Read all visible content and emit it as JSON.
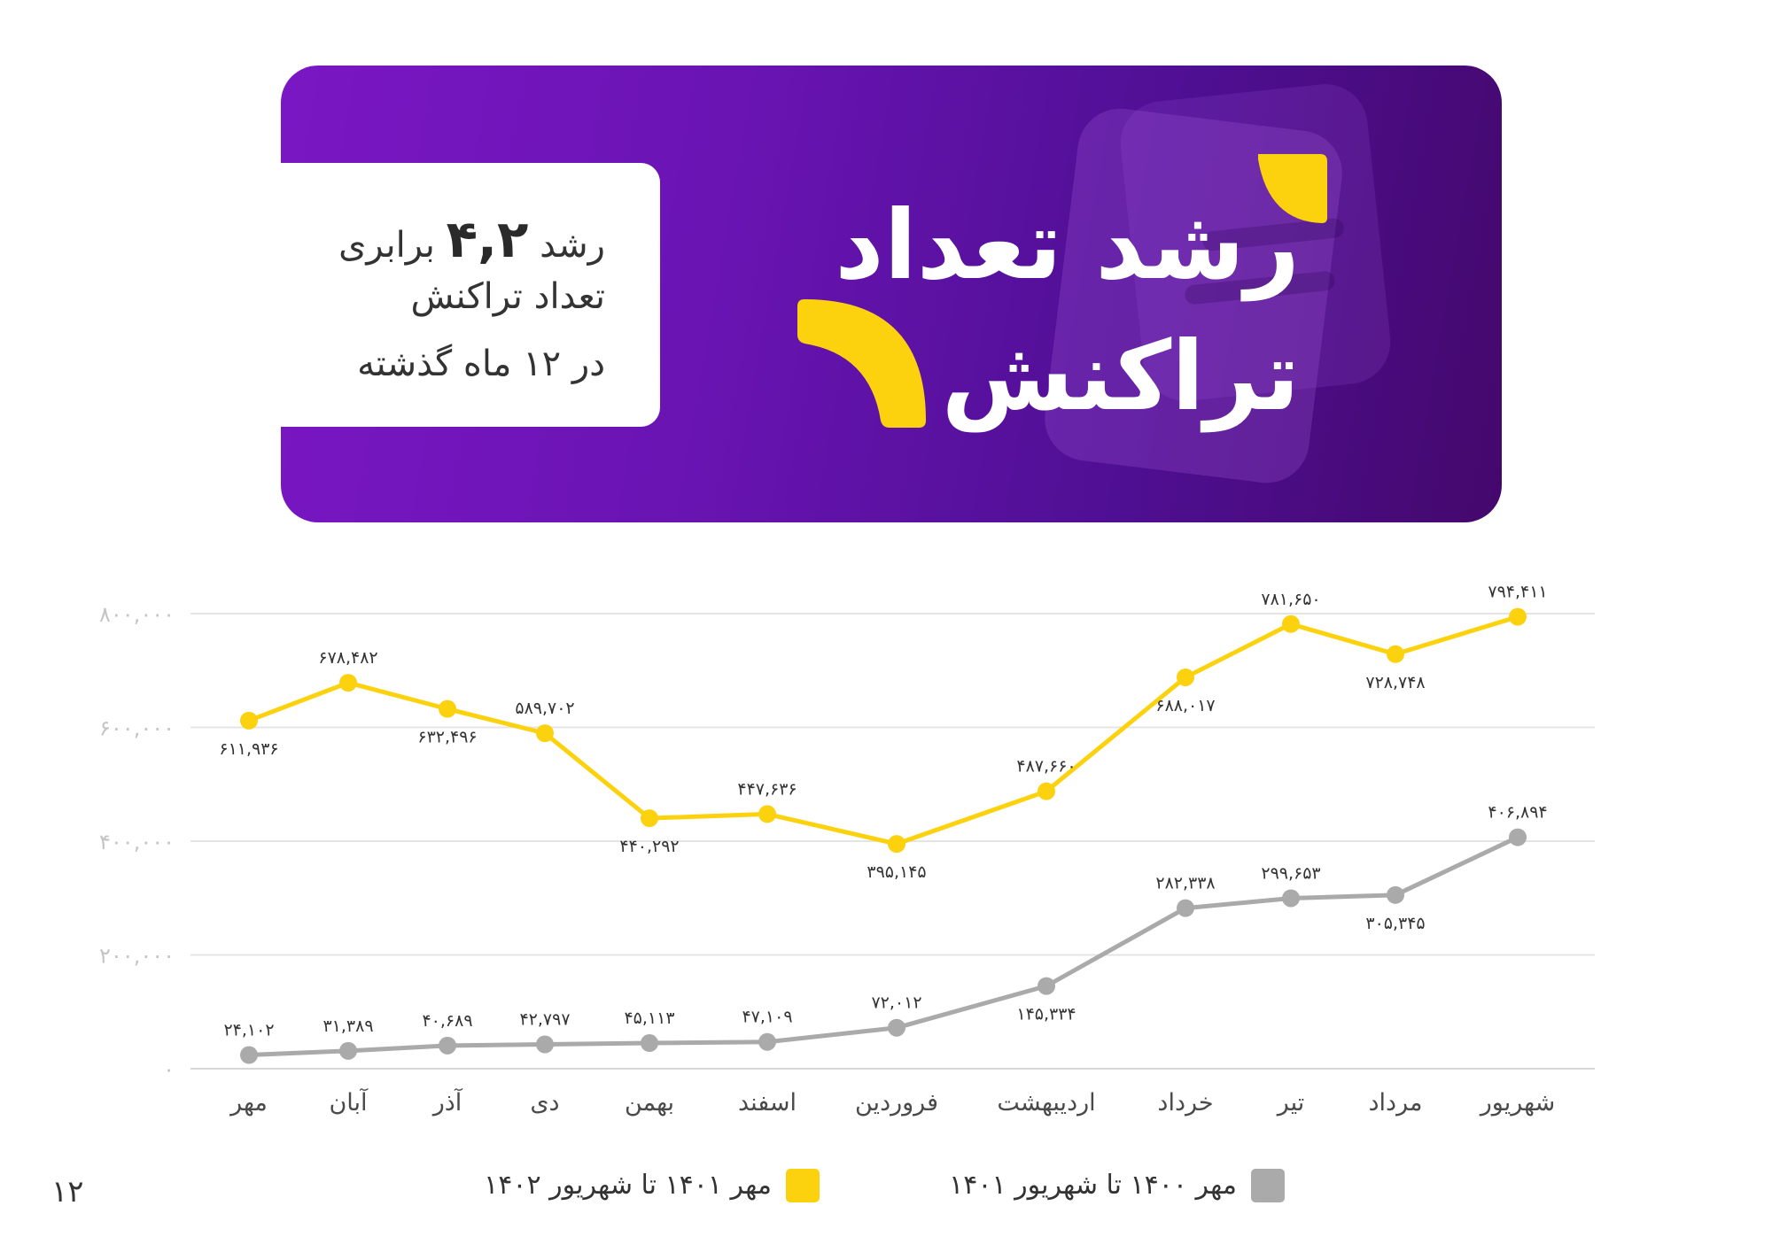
{
  "banner": {
    "title_line1": "رشد تعداد",
    "title_line2": "تراکنش",
    "note_prefix": "رشد",
    "note_number": "۴,۲",
    "note_suffix": "برابری",
    "note_line2": "تعداد تراکنش",
    "note_line3": "در ۱۲ ماه گذشته"
  },
  "page_number": "۱۲",
  "colors": {
    "yellow": "#fcd20f",
    "gray": "#aaaaaa",
    "grid": "#e4e4e4",
    "axis_label": "#c4c4c4"
  },
  "chart_data": {
    "type": "line",
    "categories": [
      "مهر",
      "آبان",
      "آذر",
      "دی",
      "بهمن",
      "اسفند",
      "فروردین",
      "اردیبهشت",
      "خرداد",
      "تیر",
      "مرداد",
      "شهریور"
    ],
    "ylim": [
      0,
      800000
    ],
    "y_ticks": [
      {
        "value": 0,
        "label": "۰"
      },
      {
        "value": 200000,
        "label": "۲۰۰,۰۰۰"
      },
      {
        "value": 400000,
        "label": "۴۰۰,۰۰۰"
      },
      {
        "value": 600000,
        "label": "۶۰۰,۰۰۰"
      },
      {
        "value": 800000,
        "label": "۸۰۰,۰۰۰"
      }
    ],
    "grid": true,
    "series": [
      {
        "name": "مهر ۱۴۰۱ تا شهریور ۱۴۰۲",
        "color": "#fcd20f",
        "values": [
          611936,
          678482,
          632496,
          589702,
          440292,
          447636,
          395145,
          487660,
          688017,
          781650,
          728748,
          794411
        ],
        "labels": [
          "۶۱۱,۹۳۶",
          "۶۷۸,۴۸۲",
          "۶۳۲,۴۹۶",
          "۵۸۹,۷۰۲",
          "۴۴۰,۲۹۲",
          "۴۴۷,۶۳۶",
          "۳۹۵,۱۴۵",
          "۴۸۷,۶۶۰",
          "۶۸۸,۰۱۷",
          "۷۸۱,۶۵۰",
          "۷۲۸,۷۴۸",
          "۷۹۴,۴۱۱"
        ],
        "label_pos": [
          "below",
          "above",
          "below",
          "above",
          "below",
          "above",
          "below",
          "above",
          "below",
          "above",
          "below",
          "above"
        ]
      },
      {
        "name": "مهر ۱۴۰۰ تا شهریور ۱۴۰۱",
        "color": "#aaaaaa",
        "values": [
          24102,
          31389,
          40689,
          42797,
          45113,
          47109,
          72012,
          145334,
          282338,
          299653,
          305345,
          406894
        ],
        "labels": [
          "۲۴,۱۰۲",
          "۳۱,۳۸۹",
          "۴۰,۶۸۹",
          "۴۲,۷۹۷",
          "۴۵,۱۱۳",
          "۴۷,۱۰۹",
          "۷۲,۰۱۲",
          "۱۴۵,۳۳۴",
          "۲۸۲,۳۳۸",
          "۲۹۹,۶۵۳",
          "۳۰۵,۳۴۵",
          "۴۰۶,۸۹۴"
        ],
        "label_pos": [
          "above",
          "above",
          "above",
          "above",
          "above",
          "above",
          "above",
          "below",
          "above",
          "above",
          "below",
          "above"
        ]
      }
    ]
  }
}
